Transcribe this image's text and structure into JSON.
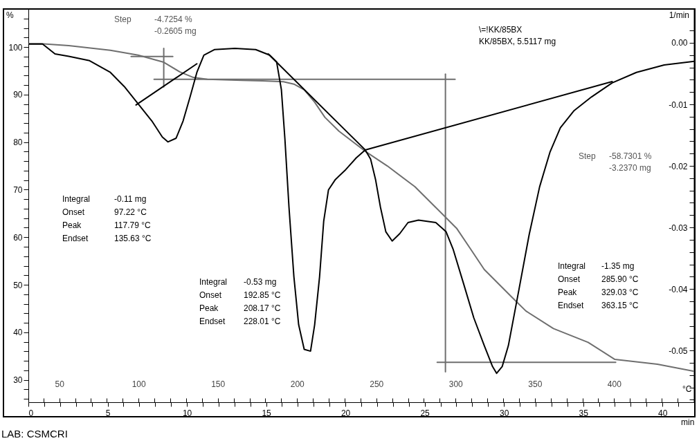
{
  "chart_data": {
    "type": "line",
    "xlabel": "min",
    "x2label": "°C",
    "ylabel": "%",
    "y2label": "1/min",
    "xlim": [
      0,
      42
    ],
    "x2lim": [
      30.5,
      450.5
    ],
    "ylim": [
      25.3,
      108
    ],
    "y2lim": [
      -0.0584,
      0.0055
    ],
    "xticks": [
      0,
      {
        "value": 1,
        "label": null
      },
      {
        "value": 2,
        "label": null
      },
      {
        "value": 3,
        "label": null
      },
      {
        "value": 4,
        "label": null
      },
      5,
      {
        "value": 6,
        "label": null
      },
      {
        "value": 7,
        "label": null
      },
      {
        "value": 8,
        "label": null
      },
      {
        "value": 9,
        "label": null
      },
      10,
      {
        "value": 11,
        "label": null
      },
      {
        "value": 12,
        "label": null
      },
      {
        "value": 13,
        "label": null
      },
      {
        "value": 14,
        "label": null
      },
      15,
      {
        "value": 16,
        "label": null
      },
      {
        "value": 17,
        "label": null
      },
      {
        "value": 18,
        "label": null
      },
      {
        "value": 19,
        "label": null
      },
      20,
      {
        "value": 21,
        "label": null
      },
      {
        "value": 22,
        "label": null
      },
      {
        "value": 23,
        "label": null
      },
      {
        "value": 24,
        "label": null
      },
      25,
      {
        "value": 26,
        "label": null
      },
      {
        "value": 27,
        "label": null
      },
      {
        "value": 28,
        "label": null
      },
      {
        "value": 29,
        "label": null
      },
      30,
      {
        "value": 31,
        "label": null
      },
      {
        "value": 32,
        "label": null
      },
      {
        "value": 33,
        "label": null
      },
      {
        "value": 34,
        "label": null
      },
      35,
      {
        "value": 36,
        "label": null
      },
      {
        "value": 37,
        "label": null
      },
      {
        "value": 38,
        "label": null
      },
      {
        "value": 39,
        "label": null
      },
      40,
      {
        "value": 41,
        "label": null
      }
    ],
    "x2ticks": [
      {
        "value": 40,
        "label": null
      },
      50,
      {
        "value": 60,
        "label": null
      },
      {
        "value": 70,
        "label": null
      },
      {
        "value": 80,
        "label": null
      },
      {
        "value": 90,
        "label": null
      },
      100,
      {
        "value": 110,
        "label": null
      },
      {
        "value": 120,
        "label": null
      },
      {
        "value": 130,
        "label": null
      },
      {
        "value": 140,
        "label": null
      },
      150,
      {
        "value": 160,
        "label": null
      },
      {
        "value": 170,
        "label": null
      },
      {
        "value": 180,
        "label": null
      },
      {
        "value": 190,
        "label": null
      },
      200,
      {
        "value": 210,
        "label": null
      },
      {
        "value": 220,
        "label": null
      },
      {
        "value": 230,
        "label": null
      },
      {
        "value": 240,
        "label": null
      },
      250,
      {
        "value": 260,
        "label": null
      },
      {
        "value": 270,
        "label": null
      },
      {
        "value": 280,
        "label": null
      },
      {
        "value": 290,
        "label": null
      },
      300,
      {
        "value": 310,
        "label": null
      },
      {
        "value": 320,
        "label": null
      },
      {
        "value": 330,
        "label": null
      },
      {
        "value": 340,
        "label": null
      },
      350,
      {
        "value": 360,
        "label": null
      },
      {
        "value": 370,
        "label": null
      },
      {
        "value": 380,
        "label": null
      },
      {
        "value": 390,
        "label": null
      },
      400,
      {
        "value": 410,
        "label": null
      },
      {
        "value": 420,
        "label": null
      },
      {
        "value": 430,
        "label": null
      },
      {
        "value": 440,
        "label": null
      }
    ],
    "yticks": [
      {
        "value": 26,
        "label": null
      },
      {
        "value": 28,
        "label": null
      },
      30,
      {
        "value": 32,
        "label": null
      },
      {
        "value": 34,
        "label": null
      },
      {
        "value": 36,
        "label": null
      },
      {
        "value": 38,
        "label": null
      },
      40,
      {
        "value": 42,
        "label": null
      },
      {
        "value": 44,
        "label": null
      },
      {
        "value": 46,
        "label": null
      },
      {
        "value": 48,
        "label": null
      },
      50,
      {
        "value": 52,
        "label": null
      },
      {
        "value": 54,
        "label": null
      },
      {
        "value": 56,
        "label": null
      },
      {
        "value": 58,
        "label": null
      },
      60,
      {
        "value": 62,
        "label": null
      },
      {
        "value": 64,
        "label": null
      },
      {
        "value": 66,
        "label": null
      },
      {
        "value": 68,
        "label": null
      },
      70,
      {
        "value": 72,
        "label": null
      },
      {
        "value": 74,
        "label": null
      },
      {
        "value": 76,
        "label": null
      },
      {
        "value": 78,
        "label": null
      },
      80,
      {
        "value": 82,
        "label": null
      },
      {
        "value": 84,
        "label": null
      },
      {
        "value": 86,
        "label": null
      },
      {
        "value": 88,
        "label": null
      },
      90,
      {
        "value": 92,
        "label": null
      },
      {
        "value": 94,
        "label": null
      },
      {
        "value": 96,
        "label": null
      },
      {
        "value": 98,
        "label": null
      },
      100,
      {
        "value": 102,
        "label": null
      },
      {
        "value": 104,
        "label": null
      },
      {
        "value": 106,
        "label": null
      }
    ],
    "y2ticks": [
      {
        "value": 0.002,
        "label": null
      },
      {
        "value": 0,
        "label": "0.00"
      },
      {
        "value": -0.002,
        "label": null
      },
      {
        "value": -0.004,
        "label": null
      },
      {
        "value": -0.006,
        "label": null
      },
      {
        "value": -0.008,
        "label": null
      },
      {
        "value": -0.01,
        "label": "-0.01"
      },
      {
        "value": -0.012,
        "label": null
      },
      {
        "value": -0.014,
        "label": null
      },
      {
        "value": -0.016,
        "label": null
      },
      {
        "value": -0.018,
        "label": null
      },
      {
        "value": -0.02,
        "label": "-0.02"
      },
      {
        "value": -0.022,
        "label": null
      },
      {
        "value": -0.024,
        "label": null
      },
      {
        "value": -0.026,
        "label": null
      },
      {
        "value": -0.028,
        "label": null
      },
      {
        "value": -0.03,
        "label": "-0.03"
      },
      {
        "value": -0.032,
        "label": null
      },
      {
        "value": -0.034,
        "label": null
      },
      {
        "value": -0.036,
        "label": null
      },
      {
        "value": -0.038,
        "label": null
      },
      {
        "value": -0.04,
        "label": "-0.04"
      },
      {
        "value": -0.042,
        "label": null
      },
      {
        "value": -0.044,
        "label": null
      },
      {
        "value": -0.046,
        "label": null
      },
      {
        "value": -0.048,
        "label": null
      },
      {
        "value": -0.05,
        "label": "-0.05"
      },
      {
        "value": -0.052,
        "label": null
      },
      {
        "value": -0.054,
        "label": null
      },
      {
        "value": -0.056,
        "label": null
      },
      {
        "value": -0.058,
        "label": null
      }
    ],
    "grid": false,
    "legend": false,
    "marker": "none",
    "line_style": "solid",
    "series": [
      {
        "type": "line",
        "axis": "y",
        "color": "#6e6e6e",
        "x": [
          0,
          0.81,
          2.55,
          5.17,
          6.92,
          8.54,
          9.54,
          10.41,
          11.29,
          13.47,
          14.78,
          16.09,
          16.75,
          17.4,
          18.06,
          18.71,
          19.59,
          20.46,
          21.33,
          22.64,
          24.39,
          26.14,
          27.01,
          27.88,
          28.76,
          29.63,
          30.5,
          31.38,
          33.12,
          35.31,
          37.0,
          39.68,
          42
        ],
        "values": [
          100.7,
          100.7,
          100.3,
          99.3,
          98.3,
          96.8,
          94.8,
          93.6,
          93.2,
          93.0,
          92.9,
          92.7,
          92.2,
          91.0,
          88.4,
          85.2,
          82.3,
          80.1,
          77.9,
          75.0,
          70.6,
          64.8,
          61.9,
          57.6,
          53.2,
          50.3,
          47.4,
          44.5,
          40.8,
          37.9,
          34.3,
          33.3,
          31.8
        ]
      },
      {
        "type": "line",
        "axis": "y2",
        "color": "#000000",
        "x": [
          0,
          0.9,
          1.68,
          2.55,
          3.86,
          5.17,
          6.05,
          6.92,
          7.79,
          8.45,
          8.8,
          9.32,
          9.76,
          10.2,
          10.63,
          11.07,
          11.73,
          13.03,
          14.34,
          15.22,
          15.66,
          15.96,
          16.18,
          16.44,
          16.75,
          17.05,
          17.4,
          17.8,
          18.06,
          18.37,
          18.63,
          18.93,
          19.37,
          20.02,
          20.68,
          21.25,
          21.59,
          21.9,
          22.21,
          22.55,
          22.95,
          23.43,
          23.95,
          24.61,
          25.7,
          26.35,
          26.79,
          27.45,
          28.1,
          28.76,
          29.28,
          29.54,
          29.89,
          30.28,
          30.94,
          31.59,
          32.25,
          32.9,
          33.56,
          34.43,
          35.52,
          36.83,
          38.36,
          40.11,
          42
        ],
        "values": [
          -0.0002,
          -0.0002,
          -0.0018,
          -0.0022,
          -0.0029,
          -0.0048,
          -0.0071,
          -0.0099,
          -0.0127,
          -0.0153,
          -0.0161,
          -0.0155,
          -0.0127,
          -0.0088,
          -0.0048,
          -0.002,
          -0.0011,
          -0.0009,
          -0.0011,
          -0.002,
          -0.0031,
          -0.0076,
          -0.0155,
          -0.0267,
          -0.038,
          -0.0458,
          -0.0498,
          -0.0501,
          -0.0458,
          -0.038,
          -0.029,
          -0.0239,
          -0.0222,
          -0.0206,
          -0.0187,
          -0.0174,
          -0.0189,
          -0.0222,
          -0.0267,
          -0.0307,
          -0.0322,
          -0.031,
          -0.0292,
          -0.0288,
          -0.0292,
          -0.0307,
          -0.0335,
          -0.0391,
          -0.0447,
          -0.0492,
          -0.0526,
          -0.0537,
          -0.0526,
          -0.0492,
          -0.0402,
          -0.0312,
          -0.0234,
          -0.0178,
          -0.0138,
          -0.011,
          -0.0088,
          -0.0065,
          -0.0048,
          -0.0036,
          -0.003
        ]
      },
      {
        "type": "line",
        "axis": "y2",
        "color": "#000000",
        "x": [
          6.79,
          10.63
        ],
        "values": [
          -0.0101,
          -0.0034
        ]
      },
      {
        "type": "line",
        "axis": "y2",
        "color": "#000000",
        "x": [
          15.13,
          21.25
        ],
        "values": [
          -0.0018,
          -0.0174
        ]
      },
      {
        "type": "line",
        "axis": "y2",
        "color": "#000000",
        "x": [
          21.25,
          36.83
        ],
        "values": [
          -0.0174,
          -0.0063
        ]
      },
      {
        "type": "line",
        "axis": "y",
        "color": "#6e6e6e",
        "x": [
          6.48,
          9.11
        ],
        "values": [
          98.0,
          98.0
        ]
      },
      {
        "type": "line",
        "axis": "y",
        "color": "#6e6e6e",
        "x": [
          8.54,
          8.54
        ],
        "values": [
          99.7,
          91.6
        ]
      },
      {
        "type": "line",
        "axis": "y",
        "color": "#6e6e6e",
        "x": [
          7.93,
          26.92
        ],
        "values": [
          93.2,
          93.2
        ]
      },
      {
        "type": "line",
        "axis": "y",
        "color": "#6e6e6e",
        "x": [
          26.31,
          26.31
        ],
        "values": [
          94.3,
          31.7
        ]
      },
      {
        "type": "line",
        "axis": "y",
        "color": "#6e6e6e",
        "x": [
          25.79,
          37.05
        ],
        "values": [
          33.7,
          33.7
        ]
      }
    ],
    "annotations": [
      "Step",
      "-4.7254 %\n-0.2605 mg",
      "\\=!KK/85BX\nKK/85BX, 5.5117 mg",
      "Step",
      "-58.7301 %\n-3.2370 mg",
      "Integral\nOnset\nPeak\nEndset",
      "-0.11 mg\n97.22 °C\n117.79 °C\n135.63 °C",
      "Integral\nOnset\nPeak\nEndset",
      "-0.53 mg\n192.85 °C\n208.17 °C\n228.01 °C",
      "Integral\nOnset\nPeak\nEndset",
      "-1.35 mg\n285.90 °C\n329.03 °C\n363.15 °C",
      "LAB: CSMCRI"
    ]
  }
}
